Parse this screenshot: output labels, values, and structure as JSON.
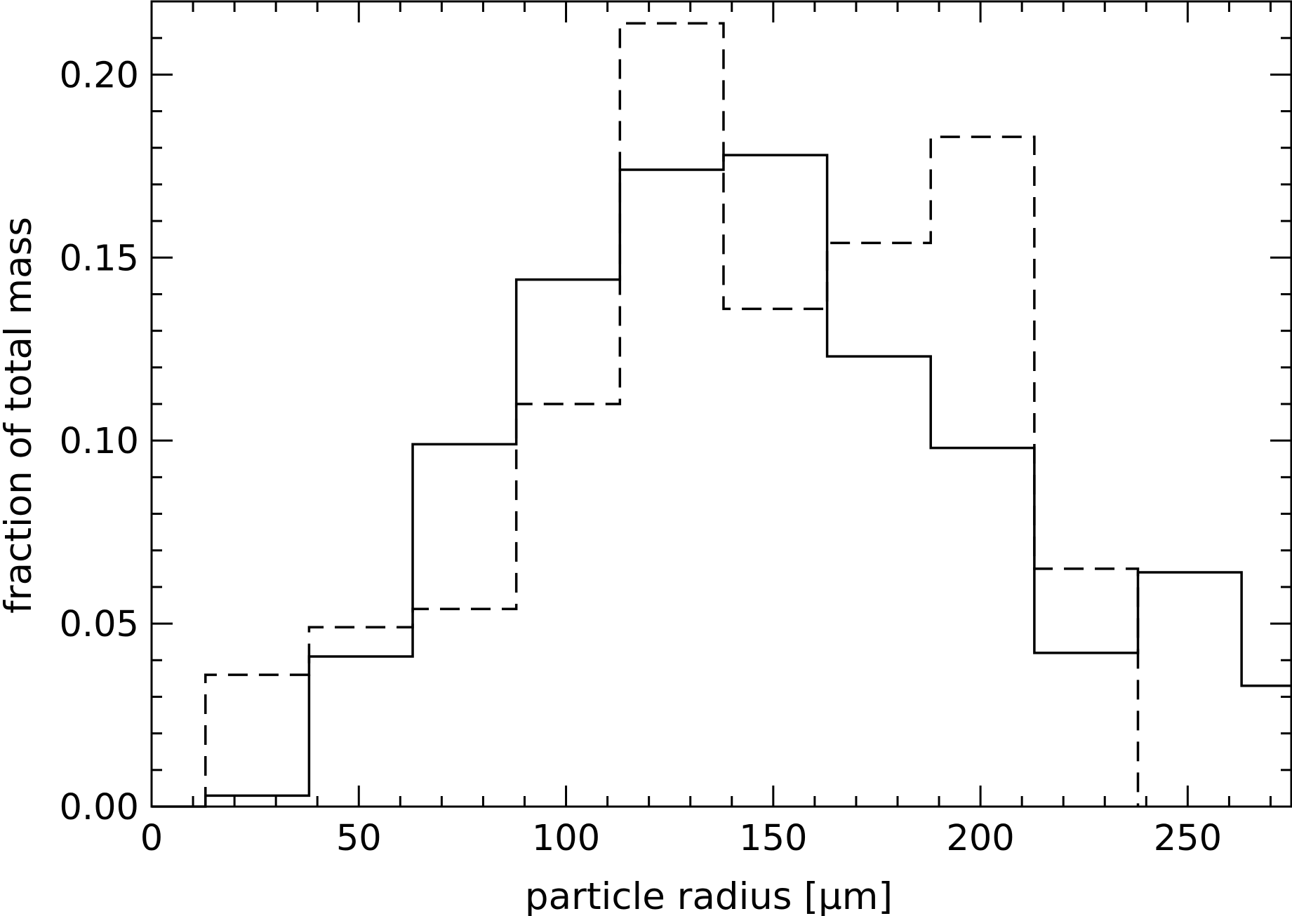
{
  "chart_data": {
    "type": "histogram",
    "title": "",
    "xlabel": "particle radius [μm]",
    "ylabel": "fraction of total mass",
    "xlim": [
      0,
      275
    ],
    "ylim": [
      0,
      0.22
    ],
    "xticks": [
      0,
      50,
      100,
      150,
      200,
      250
    ],
    "xtick_labels": [
      "0",
      "50",
      "100",
      "150",
      "200",
      "250"
    ],
    "yticks": [
      0.0,
      0.05,
      0.1,
      0.15,
      0.2
    ],
    "ytick_labels": [
      "0.00",
      "0.05",
      "0.10",
      "0.15",
      "0.20"
    ],
    "grid": false,
    "legend": "none",
    "series": [
      {
        "style": "solid",
        "color": "#000000",
        "bin_edges": [
          0,
          13,
          38,
          63,
          88,
          113,
          138,
          163,
          188,
          213,
          238,
          263,
          275
        ],
        "values": [
          0.0,
          0.003,
          0.041,
          0.099,
          0.144,
          0.174,
          0.178,
          0.123,
          0.098,
          0.042,
          0.064,
          0.033
        ]
      },
      {
        "style": "dashed",
        "color": "#000000",
        "bin_edges": [
          13,
          38,
          63,
          88,
          113,
          138,
          163,
          188,
          213,
          238
        ],
        "values": [
          0.036,
          0.049,
          0.054,
          0.11,
          0.214,
          0.136,
          0.154,
          0.183,
          0.065
        ]
      }
    ]
  }
}
